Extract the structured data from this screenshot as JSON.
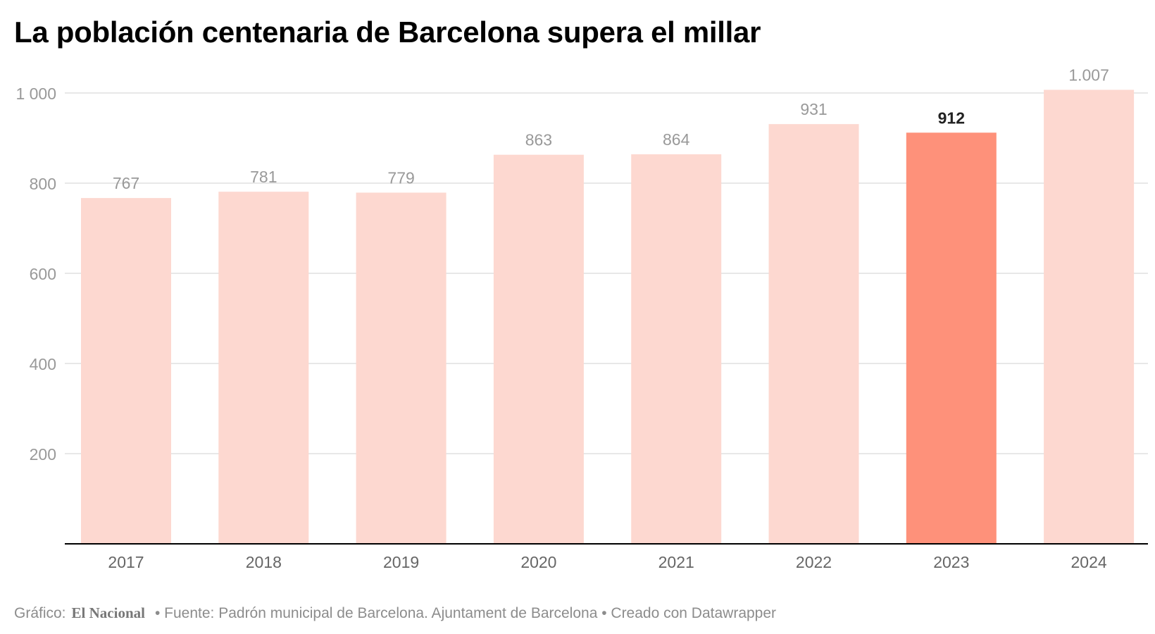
{
  "title": "La población centenaria de Barcelona supera el millar",
  "colors": {
    "bar": "#fdd8d0",
    "highlight": "#fe917a",
    "grid": "#e0e0e0",
    "axis": "#000000",
    "tick_text": "#999999",
    "label_text": "#999999",
    "highlight_label": "#222222"
  },
  "chart_data": {
    "type": "bar",
    "categories": [
      "2017",
      "2018",
      "2019",
      "2020",
      "2021",
      "2022",
      "2023",
      "2024"
    ],
    "values": [
      767,
      781,
      779,
      863,
      864,
      931,
      912,
      1007
    ],
    "value_labels": [
      "767",
      "781",
      "779",
      "863",
      "864",
      "931",
      "912",
      "1.007"
    ],
    "highlight_index": 6,
    "yticks": [
      200,
      400,
      600,
      800,
      1000
    ],
    "ytick_labels": [
      "200",
      "400",
      "600",
      "800",
      "1 000"
    ],
    "ylim": [
      0,
      1000
    ],
    "grid": true
  },
  "footer": {
    "prefix": "Gráfico:",
    "brand": "El Nacional",
    "source": "• Fuente: Padrón municipal de Barcelona. Ajuntament de Barcelona • Creado con Datawrapper"
  }
}
